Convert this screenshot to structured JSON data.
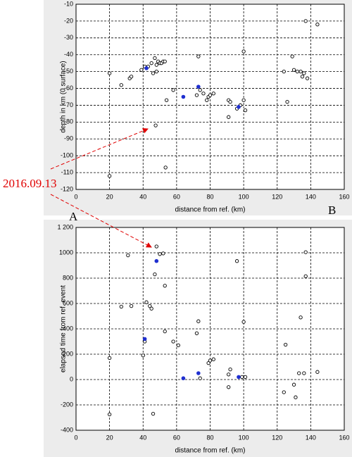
{
  "annotations": [
    "2016.09.13",
    "A",
    "B"
  ],
  "chart_data": [
    {
      "type": "scatter",
      "xlabel": "distance from ref. (km)",
      "ylabel": "depth in km (0 surface)",
      "xlim": [
        0,
        160
      ],
      "xticks": [
        0,
        20,
        40,
        60,
        80,
        100,
        120,
        140,
        160
      ],
      "ylim": [
        -120,
        -10
      ],
      "yticks": [
        -120,
        -110,
        -100,
        -90,
        -80,
        -70,
        -60,
        -50,
        -40,
        -30,
        -20,
        -10
      ],
      "grid": true,
      "series": [
        {
          "color": "#000000",
          "marker": "open",
          "x": [
            20,
            20,
            27,
            32,
            33,
            39,
            47.5,
            53.4,
            41,
            43,
            45,
            46,
            47,
            48,
            48,
            49,
            50,
            51,
            52,
            53,
            54,
            58,
            73,
            72,
            74,
            76,
            78,
            79,
            80,
            82,
            91,
            92,
            91,
            96,
            98,
            100,
            100,
            101,
            124,
            126,
            129,
            130,
            132,
            134,
            135,
            136,
            137,
            138,
            144
          ],
          "values": [
            -51,
            -112,
            -58,
            -54,
            -53,
            -49,
            -82,
            -107,
            -47,
            -47,
            -45,
            -51,
            -42,
            -46,
            -50,
            -44,
            -45,
            -45,
            -44,
            -44,
            -67,
            -61,
            -41,
            -64,
            -61,
            -63,
            -67,
            -65,
            -64,
            -63,
            -67,
            -68,
            -77,
            -72,
            -70,
            -67,
            -38,
            -73,
            -50,
            -68,
            -41,
            -49,
            -50,
            -50,
            -53,
            -51,
            -20,
            -54,
            -22
          ]
        },
        {
          "color": "#1f2fd0",
          "marker": "filled",
          "x": [
            42,
            64,
            73,
            97
          ],
          "values": [
            -48,
            -65,
            -59,
            -71
          ]
        }
      ]
    },
    {
      "type": "scatter",
      "xlabel": "distance from ref. (km)",
      "ylabel": "elapsed time from ref. event",
      "xlim": [
        0,
        160
      ],
      "xticks": [
        0,
        20,
        40,
        60,
        80,
        100,
        120,
        140,
        160
      ],
      "ylim": [
        -400,
        1200
      ],
      "yticks": [
        -400,
        -200,
        0,
        200,
        400,
        600,
        800,
        1000,
        {
          "value": 1200,
          "label": "1 200"
        }
      ],
      "grid": true,
      "series": [
        {
          "color": "#000000",
          "marker": "open",
          "x": [
            20,
            20,
            27,
            31,
            33,
            40,
            41,
            42,
            44,
            45,
            46,
            47,
            48,
            50,
            52,
            53,
            53,
            58,
            61,
            72,
            73,
            74,
            79,
            80,
            82,
            91,
            91,
            92,
            96,
            99,
            100,
            101,
            124,
            125,
            130,
            131,
            133,
            134,
            136,
            137,
            137,
            144
          ],
          "values": [
            -275,
            170,
            575,
            980,
            580,
            190,
            300,
            610,
            580,
            560,
            -270,
            830,
            1050,
            990,
            995,
            740,
            380,
            300,
            270,
            365,
            460,
            10,
            130,
            150,
            160,
            -60,
            40,
            80,
            935,
            20,
            455,
            20,
            -100,
            275,
            -40,
            -140,
            50,
            490,
            50,
            1005,
            815,
            60
          ]
        },
        {
          "color": "#1f2fd0",
          "marker": "filled",
          "x": [
            48,
            41,
            64,
            73,
            97
          ],
          "values": [
            935,
            320,
            10,
            50,
            20
          ]
        }
      ]
    }
  ]
}
